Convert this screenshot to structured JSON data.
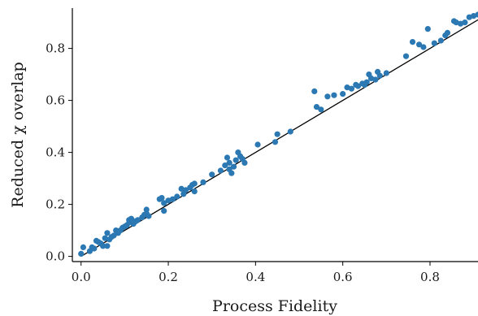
{
  "chart_data": {
    "type": "scatter",
    "xlabel": "Process Fidelity",
    "ylabel": "Reduced χ overlap",
    "xlim": [
      -0.02,
      0.91
    ],
    "ylim": [
      -0.02,
      0.955
    ],
    "xticks": [
      0.0,
      0.2,
      0.4,
      0.6,
      0.8
    ],
    "yticks": [
      0.0,
      0.2,
      0.4,
      0.6,
      0.8
    ],
    "tick_labels_x": [
      "0.0",
      "0.2",
      "0.4",
      "0.6",
      "0.8"
    ],
    "tick_labels_y": [
      "0.0",
      "0.2",
      "0.4",
      "0.6",
      "0.8"
    ],
    "grid": false,
    "legend": "none",
    "point_color": "#2b78b3",
    "line_color": "#000000",
    "reference_line": {
      "x": [
        0.0,
        0.91
      ],
      "y": [
        0.0,
        0.91
      ]
    },
    "points": [
      [
        0.0,
        0.01
      ],
      [
        0.005,
        0.035
      ],
      [
        0.02,
        0.02
      ],
      [
        0.025,
        0.035
      ],
      [
        0.03,
        0.03
      ],
      [
        0.035,
        0.06
      ],
      [
        0.04,
        0.055
      ],
      [
        0.045,
        0.05
      ],
      [
        0.05,
        0.04
      ],
      [
        0.055,
        0.07
      ],
      [
        0.06,
        0.09
      ],
      [
        0.06,
        0.04
      ],
      [
        0.065,
        0.065
      ],
      [
        0.07,
        0.075
      ],
      [
        0.075,
        0.08
      ],
      [
        0.08,
        0.1
      ],
      [
        0.085,
        0.09
      ],
      [
        0.09,
        0.1
      ],
      [
        0.095,
        0.11
      ],
      [
        0.1,
        0.115
      ],
      [
        0.105,
        0.12
      ],
      [
        0.11,
        0.13
      ],
      [
        0.11,
        0.14
      ],
      [
        0.115,
        0.145
      ],
      [
        0.12,
        0.125
      ],
      [
        0.125,
        0.135
      ],
      [
        0.13,
        0.14
      ],
      [
        0.14,
        0.15
      ],
      [
        0.145,
        0.16
      ],
      [
        0.15,
        0.165
      ],
      [
        0.15,
        0.18
      ],
      [
        0.155,
        0.155
      ],
      [
        0.18,
        0.22
      ],
      [
        0.185,
        0.225
      ],
      [
        0.19,
        0.205
      ],
      [
        0.19,
        0.175
      ],
      [
        0.2,
        0.215
      ],
      [
        0.21,
        0.22
      ],
      [
        0.22,
        0.23
      ],
      [
        0.23,
        0.26
      ],
      [
        0.235,
        0.24
      ],
      [
        0.24,
        0.255
      ],
      [
        0.25,
        0.265
      ],
      [
        0.255,
        0.275
      ],
      [
        0.26,
        0.28
      ],
      [
        0.26,
        0.25
      ],
      [
        0.28,
        0.285
      ],
      [
        0.3,
        0.315
      ],
      [
        0.32,
        0.33
      ],
      [
        0.33,
        0.35
      ],
      [
        0.335,
        0.38
      ],
      [
        0.34,
        0.335
      ],
      [
        0.34,
        0.36
      ],
      [
        0.345,
        0.32
      ],
      [
        0.35,
        0.345
      ],
      [
        0.355,
        0.37
      ],
      [
        0.36,
        0.4
      ],
      [
        0.365,
        0.385
      ],
      [
        0.37,
        0.375
      ],
      [
        0.375,
        0.36
      ],
      [
        0.405,
        0.43
      ],
      [
        0.445,
        0.44
      ],
      [
        0.45,
        0.47
      ],
      [
        0.48,
        0.48
      ],
      [
        0.535,
        0.635
      ],
      [
        0.54,
        0.575
      ],
      [
        0.55,
        0.565
      ],
      [
        0.565,
        0.615
      ],
      [
        0.58,
        0.62
      ],
      [
        0.6,
        0.625
      ],
      [
        0.61,
        0.65
      ],
      [
        0.62,
        0.645
      ],
      [
        0.63,
        0.66
      ],
      [
        0.635,
        0.655
      ],
      [
        0.645,
        0.665
      ],
      [
        0.65,
        0.66
      ],
      [
        0.655,
        0.67
      ],
      [
        0.66,
        0.7
      ],
      [
        0.665,
        0.685
      ],
      [
        0.675,
        0.68
      ],
      [
        0.68,
        0.71
      ],
      [
        0.685,
        0.695
      ],
      [
        0.7,
        0.705
      ],
      [
        0.745,
        0.77
      ],
      [
        0.76,
        0.825
      ],
      [
        0.775,
        0.815
      ],
      [
        0.785,
        0.805
      ],
      [
        0.795,
        0.875
      ],
      [
        0.81,
        0.82
      ],
      [
        0.825,
        0.83
      ],
      [
        0.835,
        0.85
      ],
      [
        0.84,
        0.86
      ],
      [
        0.855,
        0.905
      ],
      [
        0.86,
        0.9
      ],
      [
        0.87,
        0.895
      ],
      [
        0.88,
        0.9
      ],
      [
        0.89,
        0.92
      ],
      [
        0.9,
        0.925
      ],
      [
        0.91,
        0.93
      ]
    ]
  }
}
